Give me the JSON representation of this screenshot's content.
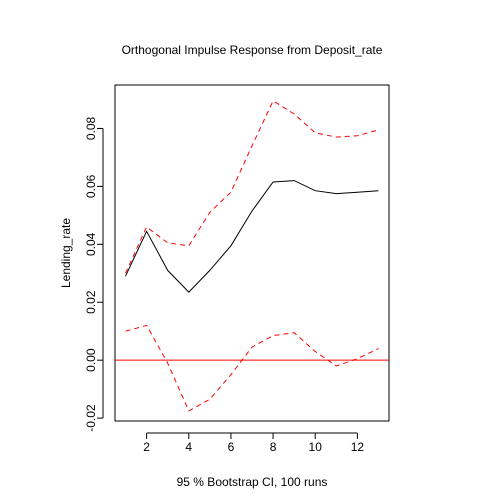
{
  "chart_data": {
    "type": "line",
    "title": "Orthogonal Impulse Response from Deposit_rate",
    "xlabel": "95 % Bootstrap CI,  100 runs",
    "ylabel": "Lending_rate",
    "xlim": [
      0.5,
      13.5
    ],
    "ylim": [
      -0.021,
      0.095
    ],
    "x": [
      1,
      2,
      3,
      4,
      5,
      6,
      7,
      8,
      9,
      10,
      11,
      12,
      13
    ],
    "xticks": [
      2,
      4,
      6,
      8,
      10,
      12
    ],
    "xtick_labels": [
      "2",
      "4",
      "6",
      "8",
      "10",
      "12"
    ],
    "yticks": [
      -0.02,
      0.0,
      0.02,
      0.04,
      0.06,
      0.08
    ],
    "ytick_labels": [
      "-0.02",
      "0.00",
      "0.02",
      "0.04",
      "0.06",
      "0.08"
    ],
    "series": [
      {
        "role": "irf",
        "color": "#000000",
        "dash": "solid",
        "values": [
          0.029,
          0.0445,
          0.031,
          0.0235,
          0.031,
          0.0395,
          0.0515,
          0.0615,
          0.062,
          0.0585,
          0.0575,
          0.058,
          0.0585
        ]
      },
      {
        "role": "upper",
        "color": "#ff0000",
        "dash": "dashed",
        "values": [
          0.03,
          0.046,
          0.0405,
          0.0395,
          0.051,
          0.058,
          0.074,
          0.0895,
          0.085,
          0.0785,
          0.077,
          0.0775,
          0.0795
        ]
      },
      {
        "role": "lower",
        "color": "#ff0000",
        "dash": "dashed",
        "values": [
          0.01,
          0.012,
          -0.001,
          -0.0175,
          -0.0135,
          -0.005,
          0.0045,
          0.0085,
          0.0095,
          0.003,
          -0.002,
          0.0005,
          0.004
        ]
      }
    ],
    "hline": {
      "y": 0.0,
      "color": "#ff0000"
    },
    "grid": false,
    "legend": "none"
  }
}
